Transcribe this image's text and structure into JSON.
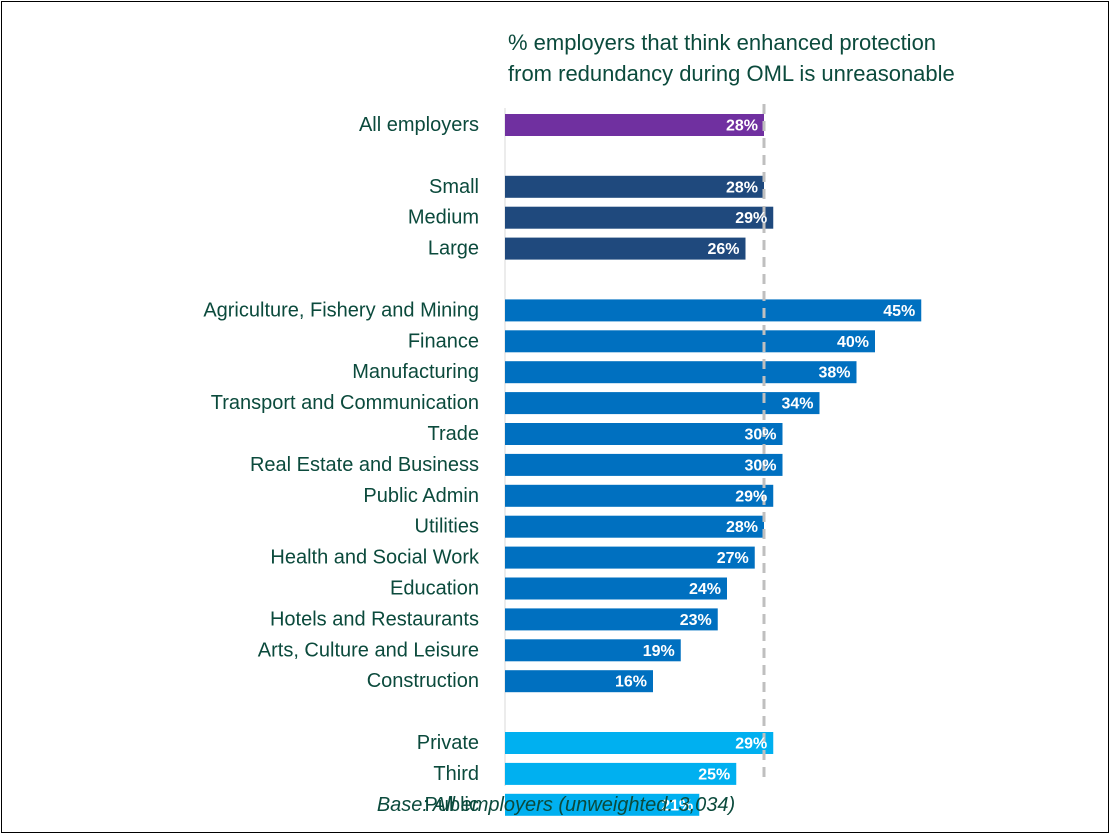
{
  "chart_data": {
    "type": "bar",
    "orientation": "horizontal",
    "title": "% employers that think enhanced protection from redundancy during OML is unreasonable",
    "title_lines": [
      "% employers that think enhanced protection",
      "from redundancy during OML is unreasonable"
    ],
    "note": "Base: All employers (unweighted: 3,034)",
    "reference_line": {
      "value": 28,
      "style": "dashed",
      "color": "#bfbfbf"
    },
    "xlim": [
      0,
      50
    ],
    "groups": [
      {
        "color": "#7030a0",
        "categories": [
          "All employers"
        ],
        "values": [
          28
        ],
        "labels": [
          "28%"
        ]
      },
      {
        "color": "#1f497d",
        "categories": [
          "Small",
          "Medium",
          "Large"
        ],
        "values": [
          28,
          29,
          26
        ],
        "labels": [
          "28%",
          "29%",
          "26%"
        ]
      },
      {
        "color": "#0070c0",
        "categories": [
          "Agriculture, Fishery and Mining",
          "Finance",
          "Manufacturing",
          "Transport and Communication",
          "Trade",
          "Real Estate and Business",
          "Public Admin ",
          "Utilities",
          "Health and Social Work",
          "Education",
          "Hotels and Restaurants",
          "Arts, Culture and Leisure",
          "Construction"
        ],
        "values": [
          45,
          40,
          38,
          34,
          30,
          30,
          29,
          28,
          27,
          24,
          23,
          19,
          16
        ],
        "labels": [
          "45%",
          "40%",
          "38%",
          "34%",
          "30%",
          "30%",
          "29%",
          "28%",
          "27%",
          "24%",
          "23%",
          "19%",
          "16%"
        ]
      },
      {
        "color": "#00b0f0",
        "categories": [
          "Private",
          "Third",
          "Public"
        ],
        "values": [
          29,
          25,
          21
        ],
        "labels": [
          "29%",
          "25%",
          "21%"
        ]
      }
    ]
  }
}
